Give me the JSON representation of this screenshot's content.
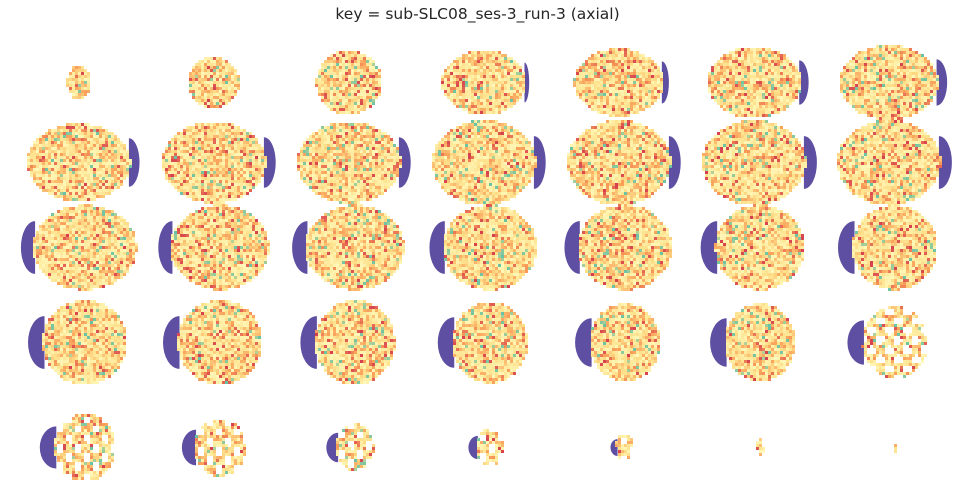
{
  "title": "key = sub-SLC08_ses-3_run-3 (axial)",
  "colormap": "spectral",
  "colors": {
    "background": "#ffffff",
    "mask": "#5e4fa2",
    "low": "#66c2a5",
    "mid": "#fee08b",
    "high": "#d53e4f"
  },
  "grid": {
    "rows": 5,
    "cols": 7,
    "slice_count": 35
  }
}
